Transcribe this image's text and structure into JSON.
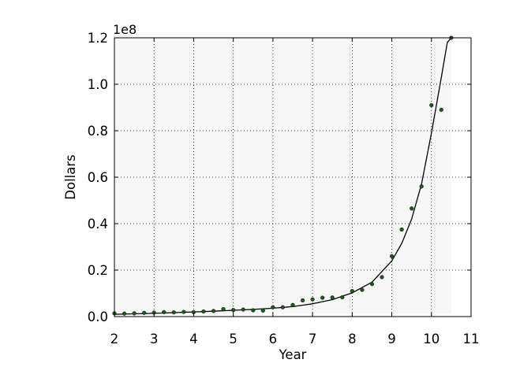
{
  "chart_data": {
    "type": "scatter",
    "title": "",
    "xlabel": "Year",
    "ylabel": "Dollars",
    "y_offset_text": "1e8",
    "xlim": [
      2,
      11
    ],
    "ylim": [
      0,
      120000000
    ],
    "grid": true,
    "x_ticks": [
      2,
      3,
      4,
      5,
      6,
      7,
      8,
      9,
      10,
      11
    ],
    "x_tick_labels": [
      "2",
      "3",
      "4",
      "5",
      "6",
      "7",
      "8",
      "9",
      "10",
      "11"
    ],
    "y_ticks": [
      0,
      20000000,
      40000000,
      60000000,
      80000000,
      100000000,
      120000000
    ],
    "y_tick_labels": [
      "0.0",
      "0.2",
      "0.4",
      "0.6",
      "0.8",
      "1.0",
      "1.2"
    ],
    "series": [
      {
        "type": "scatter",
        "color": "#1a5c1a",
        "x": [
          2.0,
          2.25,
          2.5,
          2.75,
          3.0,
          3.25,
          3.5,
          3.75,
          4.0,
          4.25,
          4.5,
          4.75,
          5.0,
          5.25,
          5.5,
          5.75,
          6.0,
          6.25,
          6.5,
          6.75,
          7.0,
          7.25,
          7.5,
          7.75,
          8.0,
          8.25,
          8.5,
          8.75,
          9.0,
          9.25,
          9.5,
          9.75,
          10.0,
          10.25,
          10.5
        ],
        "y": [
          1400000,
          1300000,
          1400000,
          1600000,
          1700000,
          1900000,
          1800000,
          2000000,
          1900000,
          2200000,
          2400000,
          3200000,
          2800000,
          3000000,
          2700000,
          2600000,
          4000000,
          4000000,
          5000000,
          7000000,
          7400000,
          8100000,
          8200000,
          8300000,
          11000000,
          11500000,
          14000000,
          17000000,
          26000000,
          37500000,
          46500000,
          56000000,
          91000000,
          89000000,
          120000000
        ]
      },
      {
        "type": "line",
        "color": "#000000",
        "x": [
          2.0,
          2.5,
          3.0,
          3.5,
          4.0,
          4.5,
          5.0,
          5.5,
          6.0,
          6.5,
          7.0,
          7.5,
          8.0,
          8.5,
          9.0,
          9.25,
          9.5,
          9.75,
          10.0,
          10.25,
          10.4,
          10.5
        ],
        "y": [
          1000000,
          1200000,
          1400000,
          1700000,
          2000000,
          2300000,
          2700000,
          3100000,
          3600000,
          4300000,
          5500000,
          7300000,
          10200000,
          14800000,
          24000000,
          31500000,
          42000000,
          57000000,
          79000000,
          103000000,
          118000000,
          120000000
        ]
      }
    ]
  }
}
